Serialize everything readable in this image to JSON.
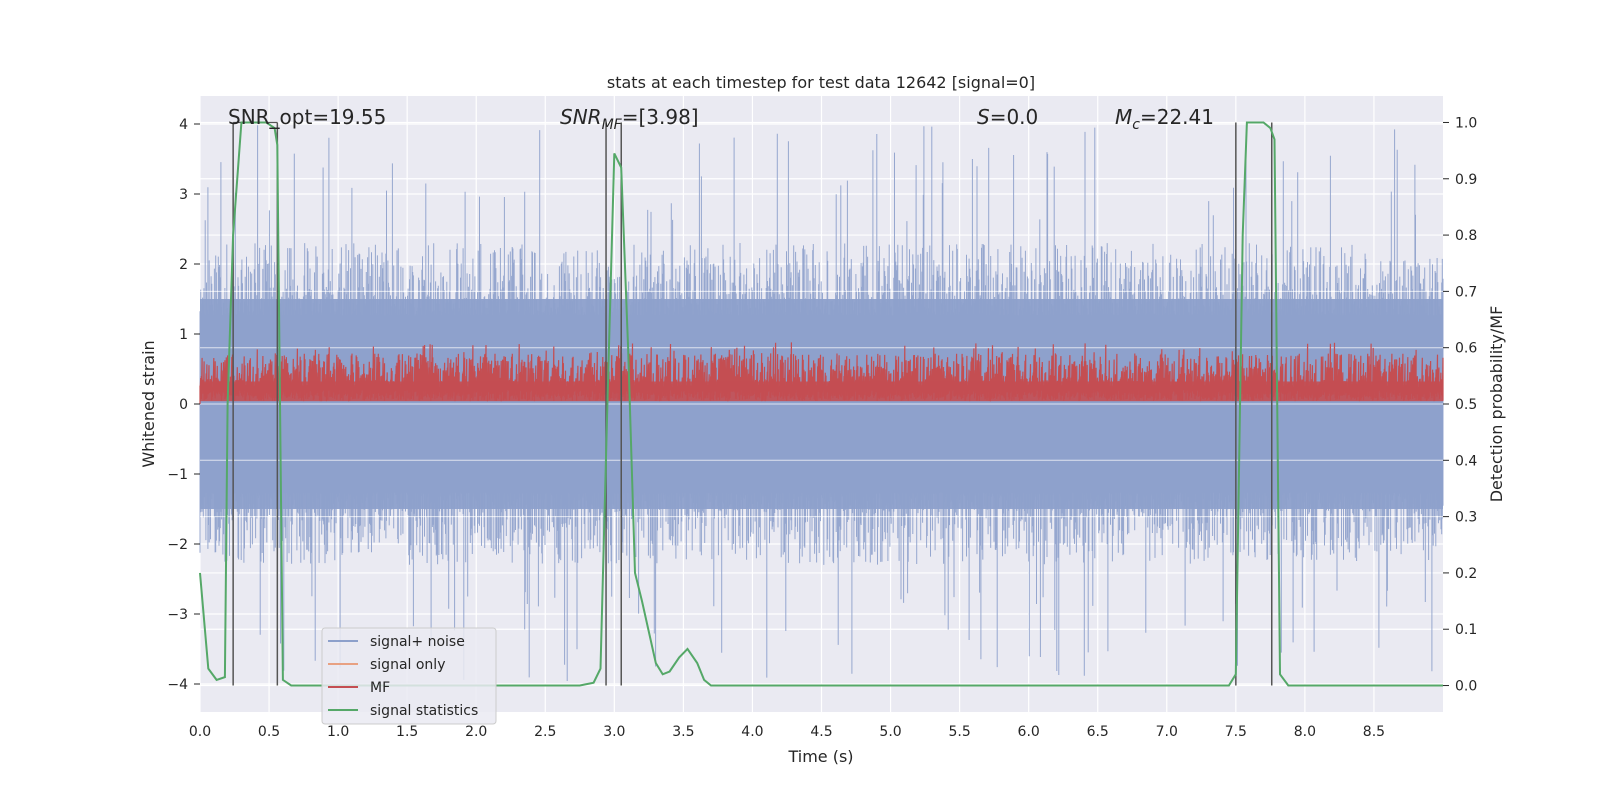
{
  "chart_data": {
    "type": "line",
    "title": "stats at each timestep for test data 12642 [signal=0]",
    "xlabel": "Time (s)",
    "ylabel": "Whitened strain",
    "y2label": "Detection probability/MF",
    "xlim": [
      0.0,
      9.0
    ],
    "ylim": [
      -4.4,
      4.4
    ],
    "y2lim": [
      -0.047,
      1.047
    ],
    "x_ticks": [
      "0.0",
      "0.5",
      "1.0",
      "1.5",
      "2.0",
      "2.5",
      "3.0",
      "3.5",
      "4.0",
      "4.5",
      "5.0",
      "5.5",
      "6.0",
      "6.5",
      "7.0",
      "7.5",
      "8.0",
      "8.5"
    ],
    "y_ticks": [
      "4",
      "3",
      "2",
      "1",
      "0",
      "−1",
      "−2",
      "−3",
      "−4"
    ],
    "y2_ticks": [
      "1.0",
      "0.9",
      "0.8",
      "0.7",
      "0.6",
      "0.5",
      "0.4",
      "0.3",
      "0.2",
      "0.1",
      "0.0"
    ],
    "grid": true,
    "legend_position": "lower-left",
    "annotations": {
      "snr_opt": "SNR_opt=19.55",
      "snr_mf_main": "SNR",
      "snr_mf_sub": "MF",
      "snr_mf_rest": "=[3.98]",
      "s_label": "S",
      "s_rest": "=0.0",
      "mc_main": "M",
      "mc_sub": "c",
      "mc_rest": "=22.41"
    },
    "series": [
      {
        "name": "signal+ noise",
        "color": "#8da0cb",
        "kind": "noise",
        "envelope_upper": 2.3,
        "envelope_lower": -2.3,
        "peak_max": 4.0,
        "peak_min": -4.0
      },
      {
        "name": "signal only",
        "color": "#e8a182",
        "kind": "flat",
        "values": []
      },
      {
        "name": "MF",
        "color": "#c44e52",
        "kind": "mf",
        "range_y2": [
          0.5,
          0.6
        ]
      },
      {
        "name": "signal statistics",
        "color": "#55a868",
        "kind": "line",
        "axis": "y2",
        "x": [
          0.0,
          0.06,
          0.12,
          0.18,
          0.2,
          0.24,
          0.3,
          0.36,
          0.42,
          0.48,
          0.54,
          0.56,
          0.6,
          0.66,
          0.72,
          0.8,
          1.0,
          2.0,
          2.5,
          2.75,
          2.85,
          2.9,
          2.95,
          3.0,
          3.05,
          3.1,
          3.15,
          3.2,
          3.3,
          3.35,
          3.4,
          3.47,
          3.53,
          3.6,
          3.65,
          3.7,
          3.8,
          4.0,
          6.0,
          7.0,
          7.3,
          7.45,
          7.5,
          7.55,
          7.58,
          7.65,
          7.7,
          7.75,
          7.78,
          7.82,
          7.88,
          8.0,
          9.0
        ],
        "y": [
          0.2,
          0.03,
          0.01,
          0.015,
          0.5,
          0.8,
          1.0,
          1.0,
          1.0,
          1.0,
          0.99,
          0.96,
          0.01,
          0.0,
          0.0,
          0.0,
          0.0,
          0.0,
          0.0,
          0.0,
          0.005,
          0.03,
          0.5,
          0.945,
          0.92,
          0.6,
          0.2,
          0.15,
          0.04,
          0.02,
          0.025,
          0.05,
          0.065,
          0.04,
          0.01,
          0.0,
          0.0,
          0.0,
          0.0,
          0.0,
          0.0,
          0.0,
          0.02,
          0.8,
          1.0,
          1.0,
          1.0,
          0.99,
          0.97,
          0.02,
          0.0,
          0.0,
          0.0
        ]
      }
    ],
    "vertical_markers": [
      0.24,
      0.56,
      2.94,
      3.05,
      7.5,
      7.76
    ]
  }
}
